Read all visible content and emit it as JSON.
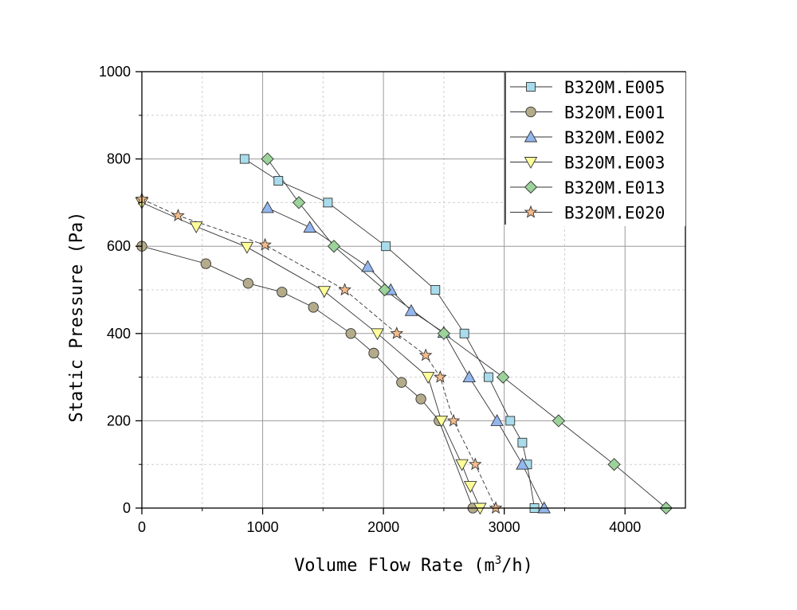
{
  "chart_data": {
    "type": "line",
    "title": "",
    "xlabel": "Volume Flow Rate (m",
    "xlabel_sup": "3",
    "xlabel_end": "/h)",
    "ylabel": "Static Pressure (Pa)",
    "xlim": [
      0,
      4500
    ],
    "ylim": [
      0,
      1000
    ],
    "xticks": [
      0,
      1000,
      2000,
      3000,
      4000
    ],
    "yticks": [
      0,
      200,
      400,
      600,
      800,
      1000
    ],
    "grid": true,
    "legend_position": "top-right",
    "series": [
      {
        "name": "B320M.E005",
        "marker": "square",
        "color": "#a8dcec",
        "x": [
          850,
          1130,
          1540,
          2020,
          2430,
          2670,
          2870,
          3050,
          3150,
          3190,
          3250
        ],
        "y": [
          800,
          750,
          700,
          600,
          500,
          400,
          300,
          200,
          150,
          100,
          0
        ]
      },
      {
        "name": "B320M.E001",
        "marker": "circle",
        "color": "#b3ab8a",
        "x": [
          0,
          530,
          880,
          1160,
          1420,
          1730,
          1920,
          2150,
          2310,
          2460,
          2740
        ],
        "y": [
          600,
          560,
          515,
          495,
          460,
          400,
          355,
          288,
          250,
          200,
          0
        ]
      },
      {
        "name": "B320M.E002",
        "marker": "triangle-up",
        "color": "#93b6ee",
        "x": [
          1040,
          1390,
          1870,
          2060,
          2230,
          2500,
          2710,
          2940,
          3150,
          3330
        ],
        "y": [
          688,
          643,
          553,
          500,
          452,
          402,
          300,
          200,
          100,
          0
        ]
      },
      {
        "name": "B320M.E003",
        "marker": "triangle-down",
        "color": "#ffff9a",
        "x": [
          0,
          450,
          870,
          1510,
          1950,
          2370,
          2480,
          2650,
          2720,
          2800
        ],
        "y": [
          700,
          645,
          598,
          497,
          400,
          300,
          200,
          100,
          50,
          0
        ]
      },
      {
        "name": "B320M.E013",
        "marker": "diamond",
        "color": "#9bd39a",
        "x": [
          1040,
          1300,
          1590,
          2010,
          2500,
          2990,
          3450,
          3910,
          4340
        ],
        "y": [
          800,
          700,
          600,
          500,
          400,
          300,
          200,
          100,
          0
        ]
      },
      {
        "name": "B320M.E020",
        "marker": "star",
        "color": "#f4bb8a",
        "x": [
          0,
          300,
          1020,
          1680,
          2110,
          2350,
          2470,
          2580,
          2760,
          2930
        ],
        "y": [
          708,
          670,
          603,
          500,
          400,
          350,
          300,
          200,
          100,
          0
        ]
      }
    ]
  }
}
